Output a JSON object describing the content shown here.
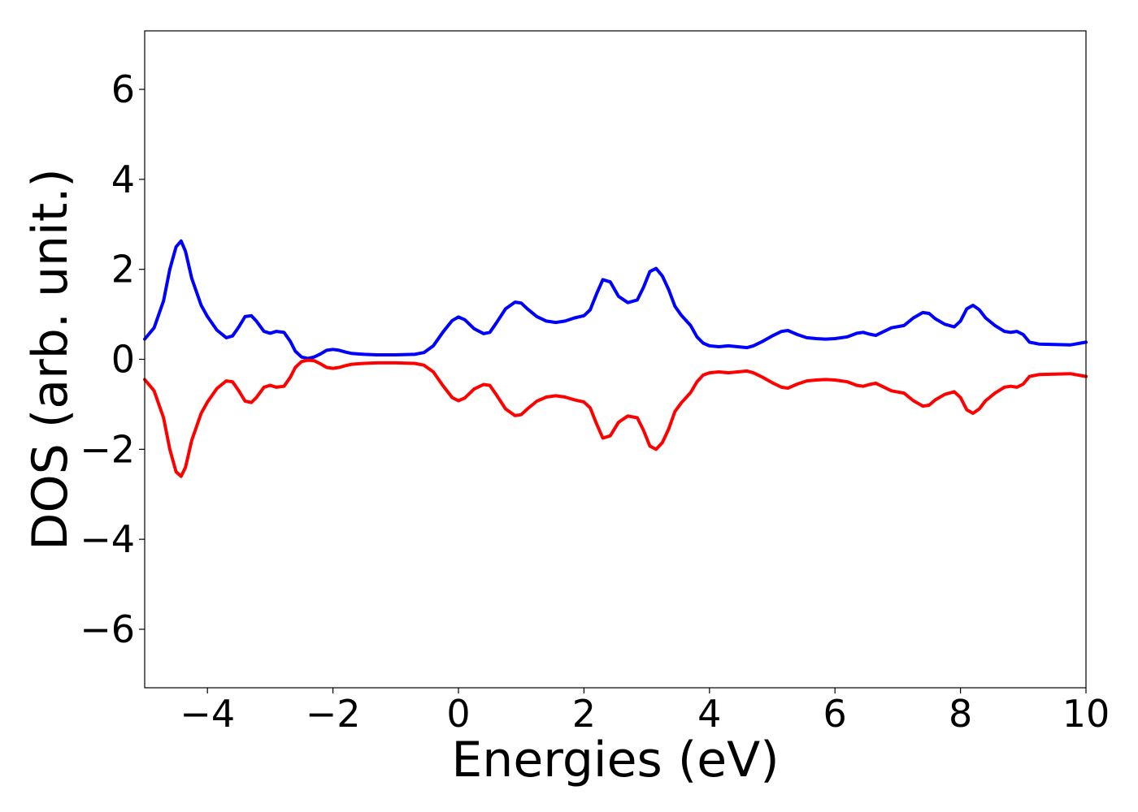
{
  "chart_data": {
    "type": "line",
    "title": "",
    "xlabel": "Energies (eV)",
    "ylabel": "DOS (arb. unit.)",
    "xlim": [
      -5,
      10
    ],
    "ylim": [
      -7.3,
      7.3
    ],
    "grid": false,
    "legend": "none",
    "xticks": [
      {
        "value": -4,
        "label": "−4"
      },
      {
        "value": -2,
        "label": "−2"
      },
      {
        "value": 0,
        "label": "0"
      },
      {
        "value": 2,
        "label": "2"
      },
      {
        "value": 4,
        "label": "4"
      },
      {
        "value": 6,
        "label": "6"
      },
      {
        "value": 8,
        "label": "8"
      },
      {
        "value": 10,
        "label": "10"
      }
    ],
    "yticks": [
      {
        "value": -6,
        "label": "−6"
      },
      {
        "value": -4,
        "label": "−4"
      },
      {
        "value": -2,
        "label": "−2"
      },
      {
        "value": 0,
        "label": "0"
      },
      {
        "value": 2,
        "label": "2"
      },
      {
        "value": 4,
        "label": "4"
      },
      {
        "value": 6,
        "label": "6"
      }
    ],
    "series": [
      {
        "color": "#0000ff",
        "x": [
          -5.0,
          -4.85,
          -4.7,
          -4.6,
          -4.5,
          -4.42,
          -4.35,
          -4.25,
          -4.1,
          -4.0,
          -3.85,
          -3.7,
          -3.6,
          -3.5,
          -3.4,
          -3.3,
          -3.22,
          -3.1,
          -3.0,
          -2.9,
          -2.78,
          -2.68,
          -2.6,
          -2.5,
          -2.4,
          -2.3,
          -2.2,
          -2.1,
          -2.0,
          -1.9,
          -1.8,
          -1.7,
          -1.6,
          -1.5,
          -1.3,
          -1.0,
          -0.7,
          -0.55,
          -0.4,
          -0.25,
          -0.1,
          0.0,
          0.1,
          0.25,
          0.4,
          0.5,
          0.6,
          0.75,
          0.9,
          1.0,
          1.1,
          1.25,
          1.4,
          1.55,
          1.7,
          1.85,
          2.0,
          2.1,
          2.2,
          2.3,
          2.42,
          2.55,
          2.7,
          2.85,
          2.95,
          3.05,
          3.15,
          3.25,
          3.35,
          3.45,
          3.55,
          3.7,
          3.8,
          3.9,
          4.0,
          4.15,
          4.3,
          4.45,
          4.6,
          4.7,
          4.85,
          5.0,
          5.15,
          5.25,
          5.4,
          5.55,
          5.7,
          5.85,
          6.0,
          6.2,
          6.35,
          6.45,
          6.55,
          6.65,
          6.75,
          6.9,
          7.1,
          7.25,
          7.4,
          7.5,
          7.6,
          7.75,
          7.9,
          8.0,
          8.1,
          8.2,
          8.3,
          8.4,
          8.55,
          8.7,
          8.8,
          8.9,
          9.0,
          9.1,
          9.25,
          9.5,
          9.75,
          10.0
        ],
        "y": [
          0.45,
          0.7,
          1.3,
          2.0,
          2.5,
          2.63,
          2.4,
          1.8,
          1.2,
          0.95,
          0.65,
          0.48,
          0.52,
          0.72,
          0.95,
          0.97,
          0.85,
          0.62,
          0.58,
          0.62,
          0.6,
          0.4,
          0.18,
          0.05,
          0.02,
          0.05,
          0.12,
          0.2,
          0.22,
          0.2,
          0.16,
          0.13,
          0.12,
          0.11,
          0.1,
          0.1,
          0.11,
          0.15,
          0.3,
          0.6,
          0.86,
          0.94,
          0.88,
          0.68,
          0.57,
          0.6,
          0.8,
          1.12,
          1.27,
          1.25,
          1.12,
          0.95,
          0.85,
          0.82,
          0.85,
          0.92,
          0.97,
          1.1,
          1.45,
          1.77,
          1.72,
          1.4,
          1.26,
          1.32,
          1.6,
          1.95,
          2.02,
          1.85,
          1.55,
          1.18,
          0.98,
          0.75,
          0.5,
          0.36,
          0.3,
          0.28,
          0.3,
          0.28,
          0.26,
          0.3,
          0.4,
          0.52,
          0.62,
          0.64,
          0.55,
          0.48,
          0.46,
          0.45,
          0.46,
          0.5,
          0.58,
          0.6,
          0.56,
          0.53,
          0.6,
          0.7,
          0.75,
          0.92,
          1.04,
          1.02,
          0.9,
          0.78,
          0.72,
          0.85,
          1.12,
          1.2,
          1.1,
          0.92,
          0.75,
          0.62,
          0.6,
          0.62,
          0.55,
          0.38,
          0.34,
          0.33,
          0.32,
          0.38
        ]
      },
      {
        "color": "#ff0000",
        "x": [
          -5.0,
          -4.85,
          -4.7,
          -4.6,
          -4.5,
          -4.42,
          -4.35,
          -4.25,
          -4.1,
          -4.0,
          -3.85,
          -3.7,
          -3.6,
          -3.5,
          -3.4,
          -3.3,
          -3.22,
          -3.1,
          -3.0,
          -2.9,
          -2.78,
          -2.68,
          -2.6,
          -2.5,
          -2.4,
          -2.3,
          -2.2,
          -2.1,
          -2.0,
          -1.9,
          -1.8,
          -1.7,
          -1.6,
          -1.5,
          -1.3,
          -1.0,
          -0.7,
          -0.55,
          -0.4,
          -0.25,
          -0.1,
          0.0,
          0.1,
          0.25,
          0.4,
          0.5,
          0.6,
          0.75,
          0.9,
          1.0,
          1.1,
          1.25,
          1.4,
          1.55,
          1.7,
          1.85,
          2.0,
          2.1,
          2.2,
          2.3,
          2.42,
          2.55,
          2.7,
          2.85,
          2.95,
          3.05,
          3.15,
          3.25,
          3.35,
          3.45,
          3.55,
          3.7,
          3.8,
          3.9,
          4.0,
          4.15,
          4.3,
          4.45,
          4.6,
          4.7,
          4.85,
          5.0,
          5.15,
          5.25,
          5.4,
          5.55,
          5.7,
          5.85,
          6.0,
          6.2,
          6.35,
          6.45,
          6.55,
          6.65,
          6.75,
          6.9,
          7.1,
          7.25,
          7.4,
          7.5,
          7.6,
          7.75,
          7.9,
          8.0,
          8.1,
          8.2,
          8.3,
          8.4,
          8.55,
          8.7,
          8.8,
          8.9,
          9.0,
          9.1,
          9.25,
          9.5,
          9.75,
          10.0
        ],
        "y": [
          -0.45,
          -0.7,
          -1.3,
          -2.0,
          -2.5,
          -2.6,
          -2.4,
          -1.8,
          -1.2,
          -0.95,
          -0.65,
          -0.48,
          -0.5,
          -0.7,
          -0.93,
          -0.96,
          -0.85,
          -0.62,
          -0.58,
          -0.62,
          -0.6,
          -0.4,
          -0.18,
          -0.05,
          -0.02,
          -0.03,
          -0.1,
          -0.18,
          -0.2,
          -0.18,
          -0.14,
          -0.11,
          -0.1,
          -0.09,
          -0.08,
          -0.08,
          -0.09,
          -0.13,
          -0.28,
          -0.58,
          -0.85,
          -0.92,
          -0.86,
          -0.66,
          -0.56,
          -0.58,
          -0.78,
          -1.1,
          -1.25,
          -1.23,
          -1.1,
          -0.93,
          -0.84,
          -0.81,
          -0.84,
          -0.9,
          -0.95,
          -1.08,
          -1.43,
          -1.75,
          -1.7,
          -1.4,
          -1.26,
          -1.3,
          -1.58,
          -1.93,
          -2.0,
          -1.85,
          -1.55,
          -1.16,
          -0.97,
          -0.74,
          -0.5,
          -0.35,
          -0.3,
          -0.28,
          -0.3,
          -0.28,
          -0.26,
          -0.3,
          -0.4,
          -0.52,
          -0.62,
          -0.64,
          -0.55,
          -0.48,
          -0.46,
          -0.45,
          -0.46,
          -0.5,
          -0.58,
          -0.6,
          -0.56,
          -0.53,
          -0.6,
          -0.7,
          -0.75,
          -0.92,
          -1.04,
          -1.02,
          -0.9,
          -0.78,
          -0.72,
          -0.85,
          -1.12,
          -1.2,
          -1.1,
          -0.92,
          -0.75,
          -0.62,
          -0.6,
          -0.62,
          -0.55,
          -0.38,
          -0.34,
          -0.33,
          -0.32,
          -0.38
        ]
      }
    ]
  }
}
